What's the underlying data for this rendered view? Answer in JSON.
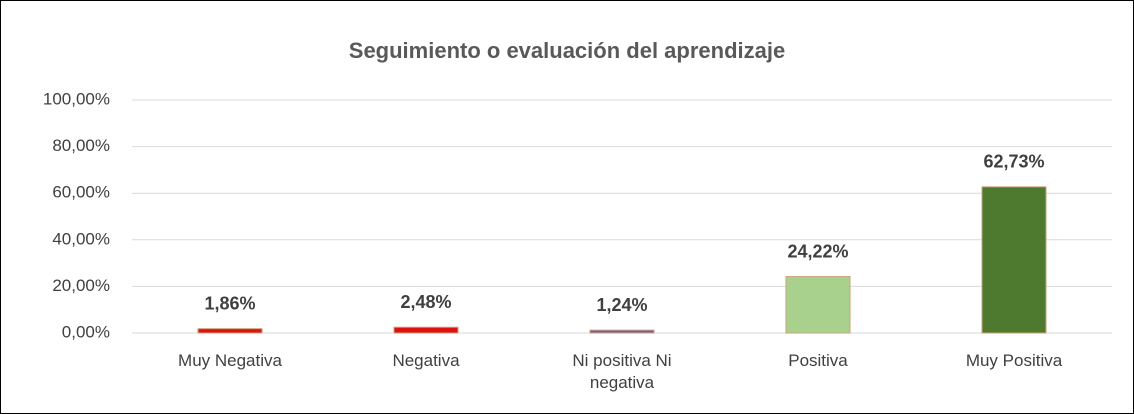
{
  "chart_data": {
    "type": "bar",
    "title": "Seguimiento o evaluación del aprendizaje",
    "categories": [
      "Muy Negativa",
      "Negativa",
      "Ni positiva Ni negativa",
      "Positiva",
      "Muy Positiva"
    ],
    "values": [
      1.86,
      2.48,
      1.24,
      24.22,
      62.73
    ],
    "value_labels": [
      "1,86%",
      "2,48%",
      "1,24%",
      "24,22%",
      "62,73%"
    ],
    "colors": [
      "#e01010",
      "#e01010",
      "#7a5c9a",
      "#a9d18e",
      "#4e7a2f"
    ],
    "ylim": [
      0,
      100
    ],
    "yticks": [
      {
        "value": 0,
        "label": "0,00%"
      },
      {
        "value": 20,
        "label": "20,00%"
      },
      {
        "value": 40,
        "label": "40,00%"
      },
      {
        "value": 60,
        "label": "60,00%"
      },
      {
        "value": 80,
        "label": "80,00%"
      },
      {
        "value": 100,
        "label": "100,00%"
      }
    ],
    "grid": true
  }
}
